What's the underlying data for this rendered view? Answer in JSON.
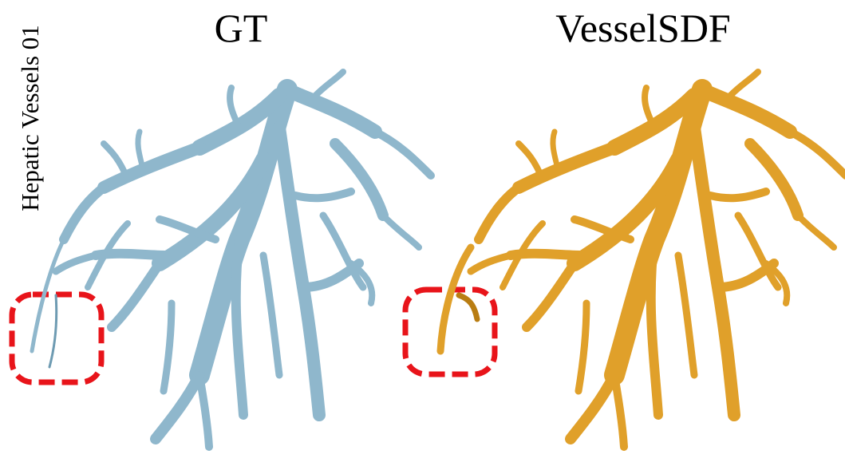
{
  "row_label": "Hepatic Vessels 01",
  "panels": [
    {
      "title": "GT",
      "color": "#8fb7cc",
      "shade": "#6e9bb2"
    },
    {
      "title": "VesselSDF",
      "color": "#e0a02a",
      "shade": "#b97d12"
    }
  ],
  "highlight": {
    "color": "#e8141a"
  }
}
